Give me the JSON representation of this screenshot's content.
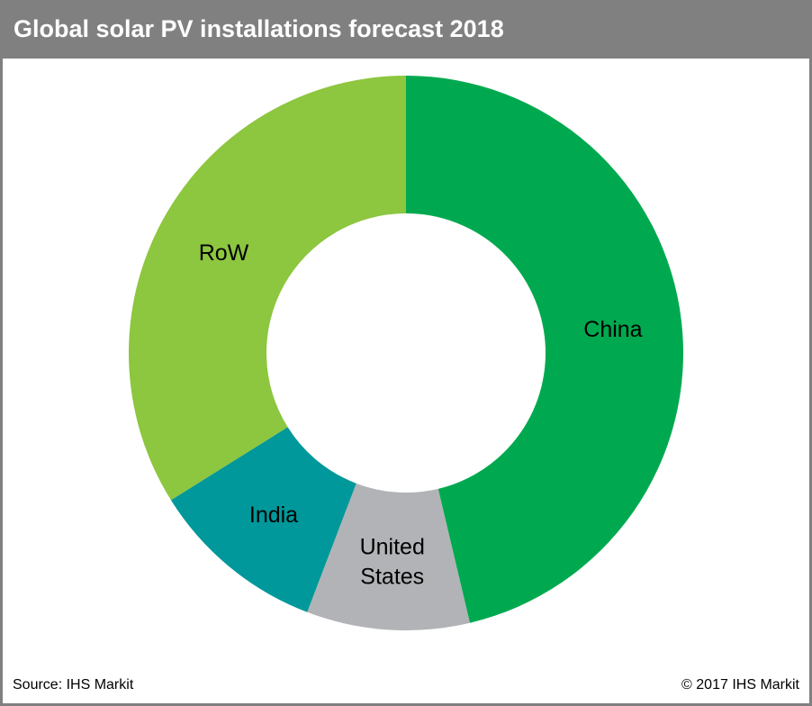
{
  "chart_data": {
    "type": "pie",
    "variant": "donut",
    "title": "Global solar PV installations forecast 2018",
    "start": "top, clockwise",
    "slices": [
      {
        "label": "China",
        "value": 46.3,
        "color": "#00a94f"
      },
      {
        "label": "United States",
        "label_lines": [
          "United",
          "States"
        ],
        "value": 9.5,
        "color": "#b1b3b6"
      },
      {
        "label": "India",
        "value": 10.3,
        "color": "#00989a"
      },
      {
        "label": "RoW",
        "value": 33.9,
        "color": "#8dc63f"
      }
    ]
  },
  "footer": {
    "source": "Source: IHS Markit",
    "copyright": "© 2017 IHS Markit"
  },
  "colors": {
    "title_bar": "#808080",
    "border": "#808080"
  }
}
